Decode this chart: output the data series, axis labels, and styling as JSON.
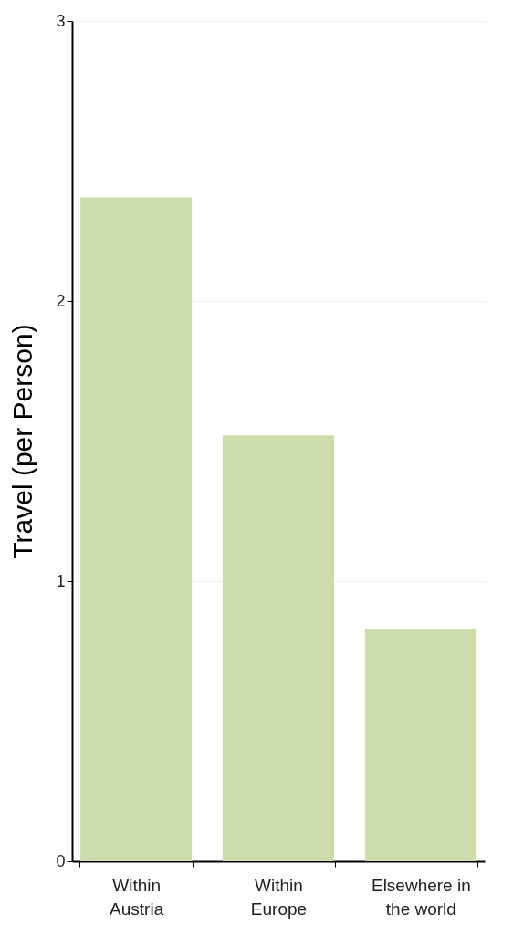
{
  "chart_data": {
    "type": "bar",
    "ylabel": "Travel (per Person)",
    "categories": [
      "Within Austria",
      "Within Europe",
      "Elsewhere in the world"
    ],
    "values": [
      2.37,
      1.52,
      0.83
    ],
    "color": "#ccdcaa",
    "ylim": [
      0,
      3
    ],
    "yticks": [
      0,
      1,
      2,
      3
    ],
    "grid": "y"
  }
}
